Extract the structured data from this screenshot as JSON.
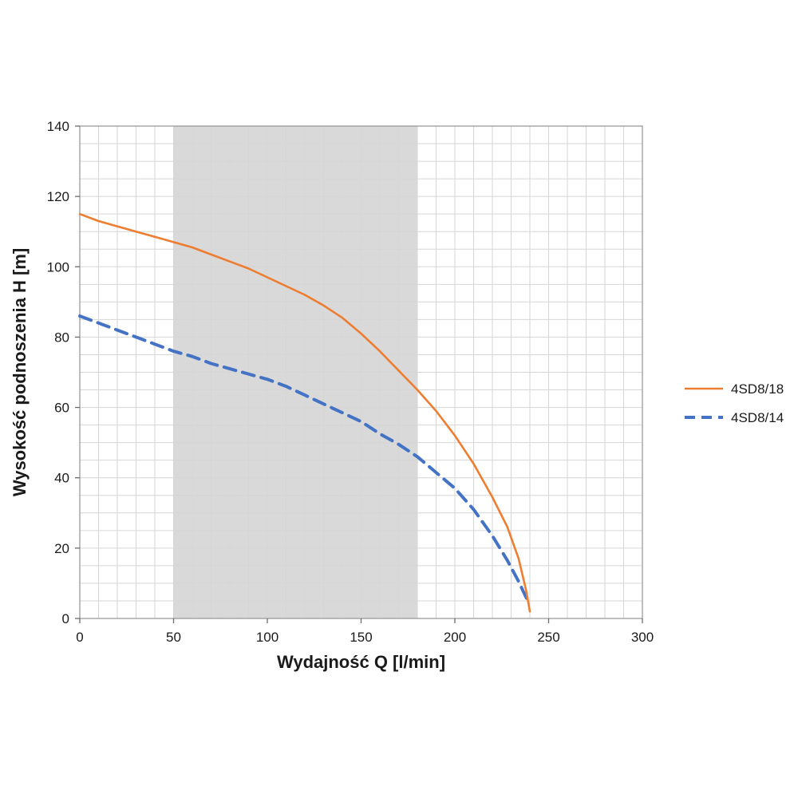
{
  "chart_data": {
    "type": "line",
    "title": "",
    "xlabel": "Wydajność Q [l/min]",
    "ylabel": "Wysokość podnoszenia H [m]",
    "xlim": [
      0,
      300
    ],
    "ylim": [
      0,
      140
    ],
    "x_major_ticks": [
      0,
      50,
      100,
      150,
      200,
      250,
      300
    ],
    "y_major_ticks": [
      0,
      20,
      40,
      60,
      80,
      100,
      120,
      140
    ],
    "x_minor_step": 10,
    "y_minor_step": 5,
    "grid": true,
    "legend_position": "right",
    "shaded_band": {
      "x_from": 50,
      "x_to": 180,
      "color": "#d9d9d9"
    },
    "colors": {
      "grid": "#d6d6d6",
      "border": "#9a9a9a",
      "tick": "#6b6b6b"
    },
    "series": [
      {
        "name": "4SD8/14",
        "color": "#4472C4",
        "style": "dashed",
        "points": [
          [
            0,
            86
          ],
          [
            10,
            84
          ],
          [
            20,
            82
          ],
          [
            30,
            80
          ],
          [
            40,
            78
          ],
          [
            50,
            76
          ],
          [
            60,
            74.5
          ],
          [
            70,
            72.5
          ],
          [
            80,
            71
          ],
          [
            90,
            69.5
          ],
          [
            100,
            68
          ],
          [
            110,
            66
          ],
          [
            120,
            63.5
          ],
          [
            130,
            61
          ],
          [
            140,
            58.5
          ],
          [
            150,
            56
          ],
          [
            160,
            52.5
          ],
          [
            170,
            49.5
          ],
          [
            180,
            46
          ],
          [
            190,
            41.5
          ],
          [
            200,
            37
          ],
          [
            210,
            31
          ],
          [
            220,
            23.5
          ],
          [
            228,
            16.5
          ],
          [
            234,
            10.5
          ],
          [
            238,
            6
          ],
          [
            240,
            4
          ]
        ]
      },
      {
        "name": "4SD8/18",
        "color": "#ED7D31",
        "style": "solid",
        "points": [
          [
            0,
            115
          ],
          [
            10,
            113
          ],
          [
            20,
            111.5
          ],
          [
            30,
            110
          ],
          [
            40,
            108.5
          ],
          [
            50,
            107
          ],
          [
            60,
            105.5
          ],
          [
            70,
            103.5
          ],
          [
            80,
            101.5
          ],
          [
            90,
            99.5
          ],
          [
            100,
            97
          ],
          [
            110,
            94.5
          ],
          [
            120,
            92
          ],
          [
            130,
            89
          ],
          [
            140,
            85.5
          ],
          [
            150,
            81
          ],
          [
            160,
            76
          ],
          [
            170,
            70.5
          ],
          [
            180,
            65
          ],
          [
            190,
            59
          ],
          [
            200,
            52
          ],
          [
            210,
            44
          ],
          [
            220,
            34.5
          ],
          [
            228,
            26
          ],
          [
            234,
            17
          ],
          [
            238,
            8
          ],
          [
            240,
            2
          ]
        ]
      }
    ]
  },
  "layout_note": "pump performance curves chart"
}
